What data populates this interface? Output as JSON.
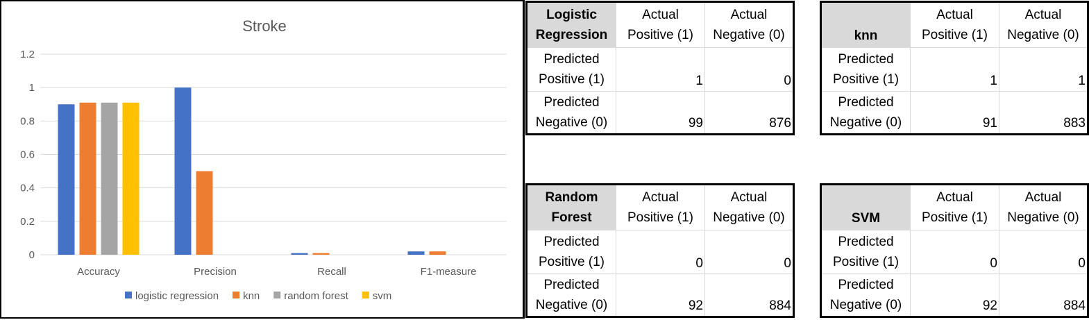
{
  "chart_data": {
    "type": "bar",
    "title": "Stroke",
    "categories": [
      "Accuracy",
      "Precision",
      "Recall",
      "F1-measure"
    ],
    "series": [
      {
        "name": "logistic regression",
        "color": "#4472C4",
        "values": [
          0.9,
          1.0,
          0.01,
          0.02
        ]
      },
      {
        "name": "knn",
        "color": "#ED7D31",
        "values": [
          0.91,
          0.5,
          0.01,
          0.02
        ]
      },
      {
        "name": "random forest",
        "color": "#A5A5A5",
        "values": [
          0.91,
          0,
          0,
          0
        ]
      },
      {
        "name": "svm",
        "color": "#FFC000",
        "values": [
          0.91,
          0,
          0,
          0
        ]
      }
    ],
    "yticks": [
      "0",
      "0.2",
      "0.4",
      "0.6",
      "0.8",
      "1",
      "1.2"
    ],
    "ylim": [
      0,
      1.2
    ],
    "grid": true,
    "legend_position": "bottom"
  },
  "tables": {
    "logistic": {
      "title": "Logistic Regression",
      "col1": "Actual Positive (1)",
      "col2": "Actual Negative (0)",
      "row1": "Predicted Positive (1)",
      "row2": "Predicted Negative (0)",
      "tp": "1",
      "fp": "0",
      "fn": "99",
      "tn": "876"
    },
    "knn": {
      "title": "knn",
      "col1": "Actual Positive (1)",
      "col2": "Actual Negative (0)",
      "row1": "Predicted Positive (1)",
      "row2": "Predicted Negative (0)",
      "tp": "1",
      "fp": "1",
      "fn": "91",
      "tn": "883"
    },
    "rf": {
      "title": "Random Forest",
      "col1": "Actual Positive (1)",
      "col2": "Actual Negative (0)",
      "row1": "Predicted Positive (1)",
      "row2": "Predicted Negative (0)",
      "tp": "0",
      "fp": "0",
      "fn": "92",
      "tn": "884"
    },
    "svm": {
      "title": "SVM",
      "col1": "Actual Positive (1)",
      "col2": "Actual Negative (0)",
      "row1": "Predicted Positive (1)",
      "row2": "Predicted Negative (0)",
      "tp": "0",
      "fp": "0",
      "fn": "92",
      "tn": "884"
    }
  }
}
